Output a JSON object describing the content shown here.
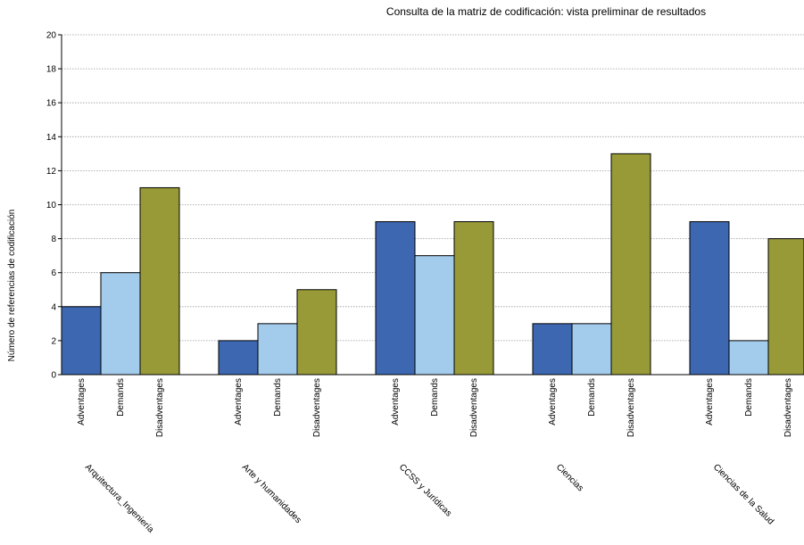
{
  "chart_data": {
    "type": "bar",
    "title": "Consulta de la matriz de codificación: vista preliminar de resultados",
    "ylabel": "Número de referencias de codificación",
    "xlabel": "",
    "ylim": [
      0,
      20
    ],
    "yticks": [
      0,
      2,
      4,
      6,
      8,
      10,
      12,
      14,
      16,
      18,
      20
    ],
    "grid": true,
    "groups": [
      {
        "name": "Arquitectura_Ingeniería",
        "bars": [
          {
            "label": "Adventages",
            "value": 4
          },
          {
            "label": "Demands",
            "value": 6
          },
          {
            "label": "Disadventages",
            "value": 11
          }
        ]
      },
      {
        "name": "Arte y humanidades",
        "bars": [
          {
            "label": "Adventages",
            "value": 2
          },
          {
            "label": "Demands",
            "value": 3
          },
          {
            "label": "Disadventages",
            "value": 5
          }
        ]
      },
      {
        "name": "CCSS y Jurídicas",
        "bars": [
          {
            "label": "Adventages",
            "value": 9
          },
          {
            "label": "Demands",
            "value": 7
          },
          {
            "label": "Disadventages",
            "value": 9
          }
        ]
      },
      {
        "name": "Ciencias",
        "bars": [
          {
            "label": "Adventages",
            "value": 3
          },
          {
            "label": "Demands",
            "value": 3
          },
          {
            "label": "Disadventages",
            "value": 13
          }
        ]
      },
      {
        "name": "Ciencias de la Salud",
        "bars": [
          {
            "label": "Adventages",
            "value": 9
          },
          {
            "label": "Demands",
            "value": 2
          },
          {
            "label": "Disadventages",
            "value": 8
          }
        ]
      }
    ],
    "colors": {
      "Adventages": "#3d67b1",
      "Demands": "#a3cbeb",
      "Disadventages": "#989a38"
    }
  }
}
